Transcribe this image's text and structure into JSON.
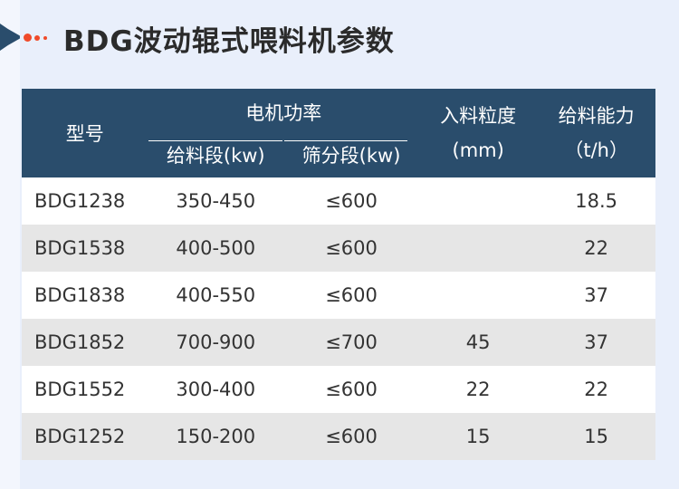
{
  "title": "BDG波动辊式喂料机参数",
  "colors": {
    "header": "#2a4d6c",
    "accent": "#f04a2a",
    "background": "#e9effb"
  },
  "table": {
    "headers": {
      "model": "型号",
      "power": "电机功率",
      "feed": "给料段(kw)",
      "screen": "筛分段(kw)",
      "size": "入料粒度",
      "size_unit": "(mm)",
      "capacity": "给料能力",
      "capacity_unit": "（t/h）"
    },
    "rows": [
      [
        "BDG1238",
        "350-450",
        "≤600",
        "",
        "18.5"
      ],
      [
        "BDG1538",
        "400-500",
        "≤600",
        "",
        "22"
      ],
      [
        "BDG1838",
        "400-550",
        "≤600",
        "",
        "37"
      ],
      [
        "BDG1852",
        "700-900",
        "≤700",
        "45",
        "37"
      ],
      [
        "BDG1552",
        "300-400",
        "≤600",
        "22",
        "22"
      ],
      [
        "BDG1252",
        "150-200",
        "≤600",
        "15",
        "15"
      ]
    ]
  }
}
